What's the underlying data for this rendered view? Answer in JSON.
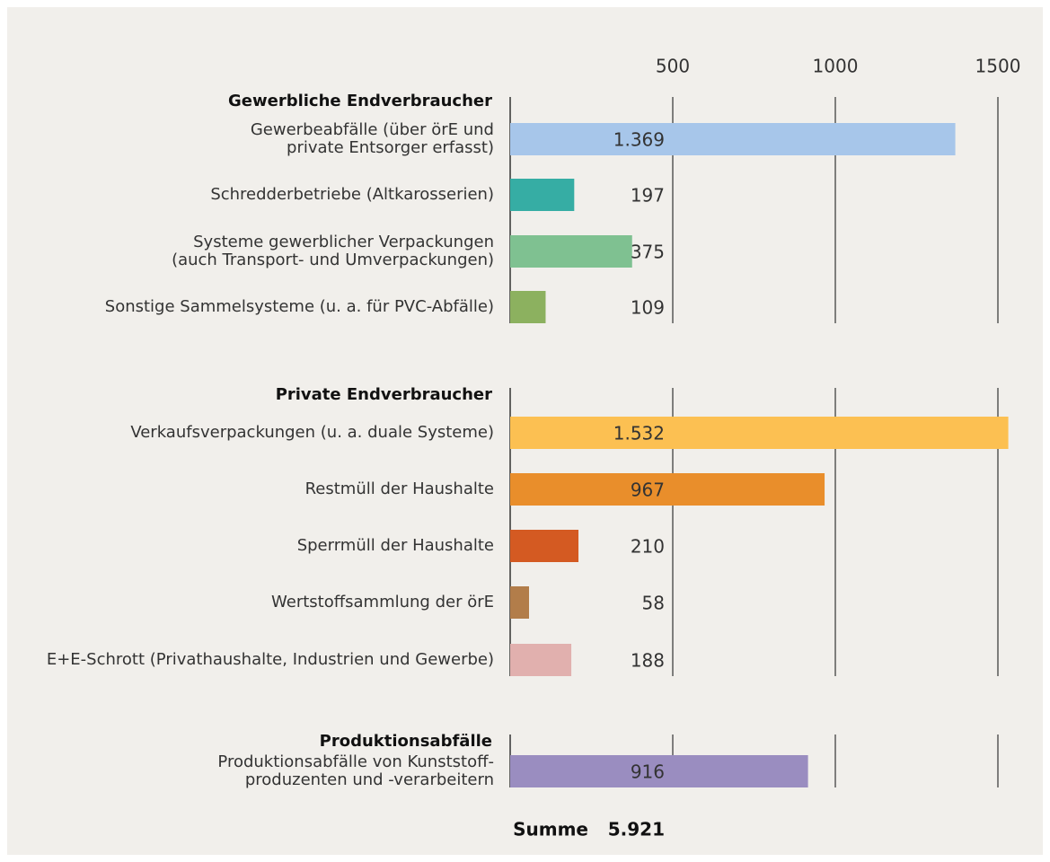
{
  "chart_data": {
    "type": "bar",
    "xlim": [
      0,
      1500
    ],
    "xticks": [
      500,
      1000,
      1500
    ],
    "grid": true,
    "groups": [
      {
        "name": "Gewerbliche Endverbraucher",
        "categories": [
          "Gewerbeabfälle (über örE und\nprivate Entsorger erfasst)",
          "Schredderbetriebe (Altkarosserien)",
          "Systeme gewerblicher Verpackungen\n(auch Transport- und Umverpackungen)",
          "Sonstige Sammelsysteme (u. a. für PVC-Abfälle)"
        ],
        "values": [
          1369,
          197,
          375,
          109
        ],
        "value_labels": [
          "1.369",
          "197",
          "375",
          "109"
        ],
        "colors": [
          "#a7c6ea",
          "#36ada4",
          "#7fc191",
          "#8cb15f"
        ]
      },
      {
        "name": "Private Endverbraucher",
        "categories": [
          "Verkaufsverpackungen (u. a. duale Systeme)",
          "Restmüll der Haushalte",
          "Sperrmüll der Haushalte",
          "Wertstoffsammlung der örE",
          "E+E-Schrott (Privathaushalte, Industrien und Gewerbe)"
        ],
        "values": [
          1532,
          967,
          210,
          58,
          188
        ],
        "value_labels": [
          "1.532",
          "967",
          "210",
          "58",
          "188"
        ],
        "colors": [
          "#fcc052",
          "#e98e2b",
          "#d45a22",
          "#b27d4a",
          "#e1b0ae"
        ]
      },
      {
        "name": "Produktionsabfälle",
        "categories": [
          "Produktionsabfälle von Kunststoff-\nproduzenten und -verarbeitern"
        ],
        "values": [
          916
        ],
        "value_labels": [
          "916"
        ],
        "colors": [
          "#9a8dc0"
        ]
      }
    ],
    "total_label": "Summe",
    "total": "5.921"
  }
}
